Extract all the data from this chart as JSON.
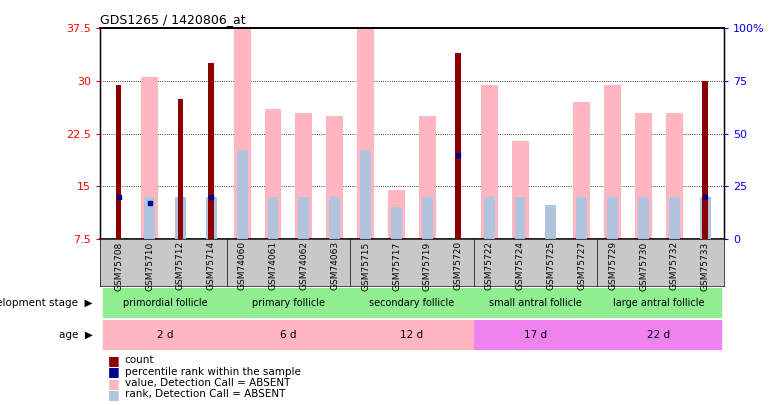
{
  "title": "GDS1265 / 1420806_at",
  "samples": [
    "GSM75708",
    "GSM75710",
    "GSM75712",
    "GSM75714",
    "GSM74060",
    "GSM74061",
    "GSM74062",
    "GSM74063",
    "GSM75715",
    "GSM75717",
    "GSM75719",
    "GSM75720",
    "GSM75722",
    "GSM75724",
    "GSM75725",
    "GSM75727",
    "GSM75729",
    "GSM75730",
    "GSM75732",
    "GSM75733"
  ],
  "count_values": [
    29.5,
    null,
    27.5,
    32.5,
    null,
    null,
    null,
    null,
    null,
    null,
    null,
    34.0,
    null,
    null,
    null,
    null,
    null,
    null,
    null,
    30.0
  ],
  "count_rank_pct": [
    20.0,
    17.0,
    null,
    20.0,
    null,
    null,
    null,
    null,
    null,
    null,
    null,
    40.0,
    null,
    null,
    null,
    null,
    null,
    null,
    null,
    20.0
  ],
  "absent_value": [
    null,
    30.5,
    null,
    null,
    37.5,
    26.0,
    25.5,
    25.0,
    37.5,
    14.5,
    25.0,
    null,
    29.5,
    21.5,
    null,
    27.0,
    29.5,
    25.5,
    25.5,
    null
  ],
  "absent_rank_pct": [
    null,
    20.0,
    20.0,
    20.0,
    42.0,
    20.0,
    20.0,
    20.0,
    42.0,
    15.0,
    20.0,
    null,
    20.0,
    20.0,
    16.0,
    20.0,
    20.0,
    20.0,
    20.0,
    20.0
  ],
  "ylim_left": [
    7.5,
    37.5
  ],
  "ylim_right": [
    0,
    100
  ],
  "yticks_left": [
    7.5,
    15.0,
    22.5,
    30.0,
    37.5
  ],
  "ytick_labels_left": [
    "7.5",
    "15",
    "22.5",
    "30",
    "37.5"
  ],
  "yticks_right": [
    0,
    25,
    50,
    75,
    100
  ],
  "ytick_labels_right": [
    "0",
    "25",
    "50",
    "75",
    "100%"
  ],
  "dev_groups": [
    {
      "label": "primordial follicle",
      "start": 0,
      "end": 3,
      "color": "#90EE90"
    },
    {
      "label": "primary follicle",
      "start": 4,
      "end": 7,
      "color": "#90EE90"
    },
    {
      "label": "secondary follicle",
      "start": 8,
      "end": 11,
      "color": "#90EE90"
    },
    {
      "label": "small antral follicle",
      "start": 12,
      "end": 15,
      "color": "#90EE90"
    },
    {
      "label": "large antral follicle",
      "start": 16,
      "end": 19,
      "color": "#90EE90"
    }
  ],
  "age_labels": [
    "2 d",
    "6 d",
    "12 d",
    "17 d",
    "22 d"
  ],
  "age_colors": [
    "#FFB6C1",
    "#FFB6C1",
    "#FFB6C1",
    "#EE82EE",
    "#EE82EE"
  ],
  "count_color": "#8B0000",
  "rank_color": "#00008B",
  "absent_val_color": "#FFB6C1",
  "absent_rank_color": "#B0C4DE",
  "xtick_bg_color": "#C8C8C8"
}
